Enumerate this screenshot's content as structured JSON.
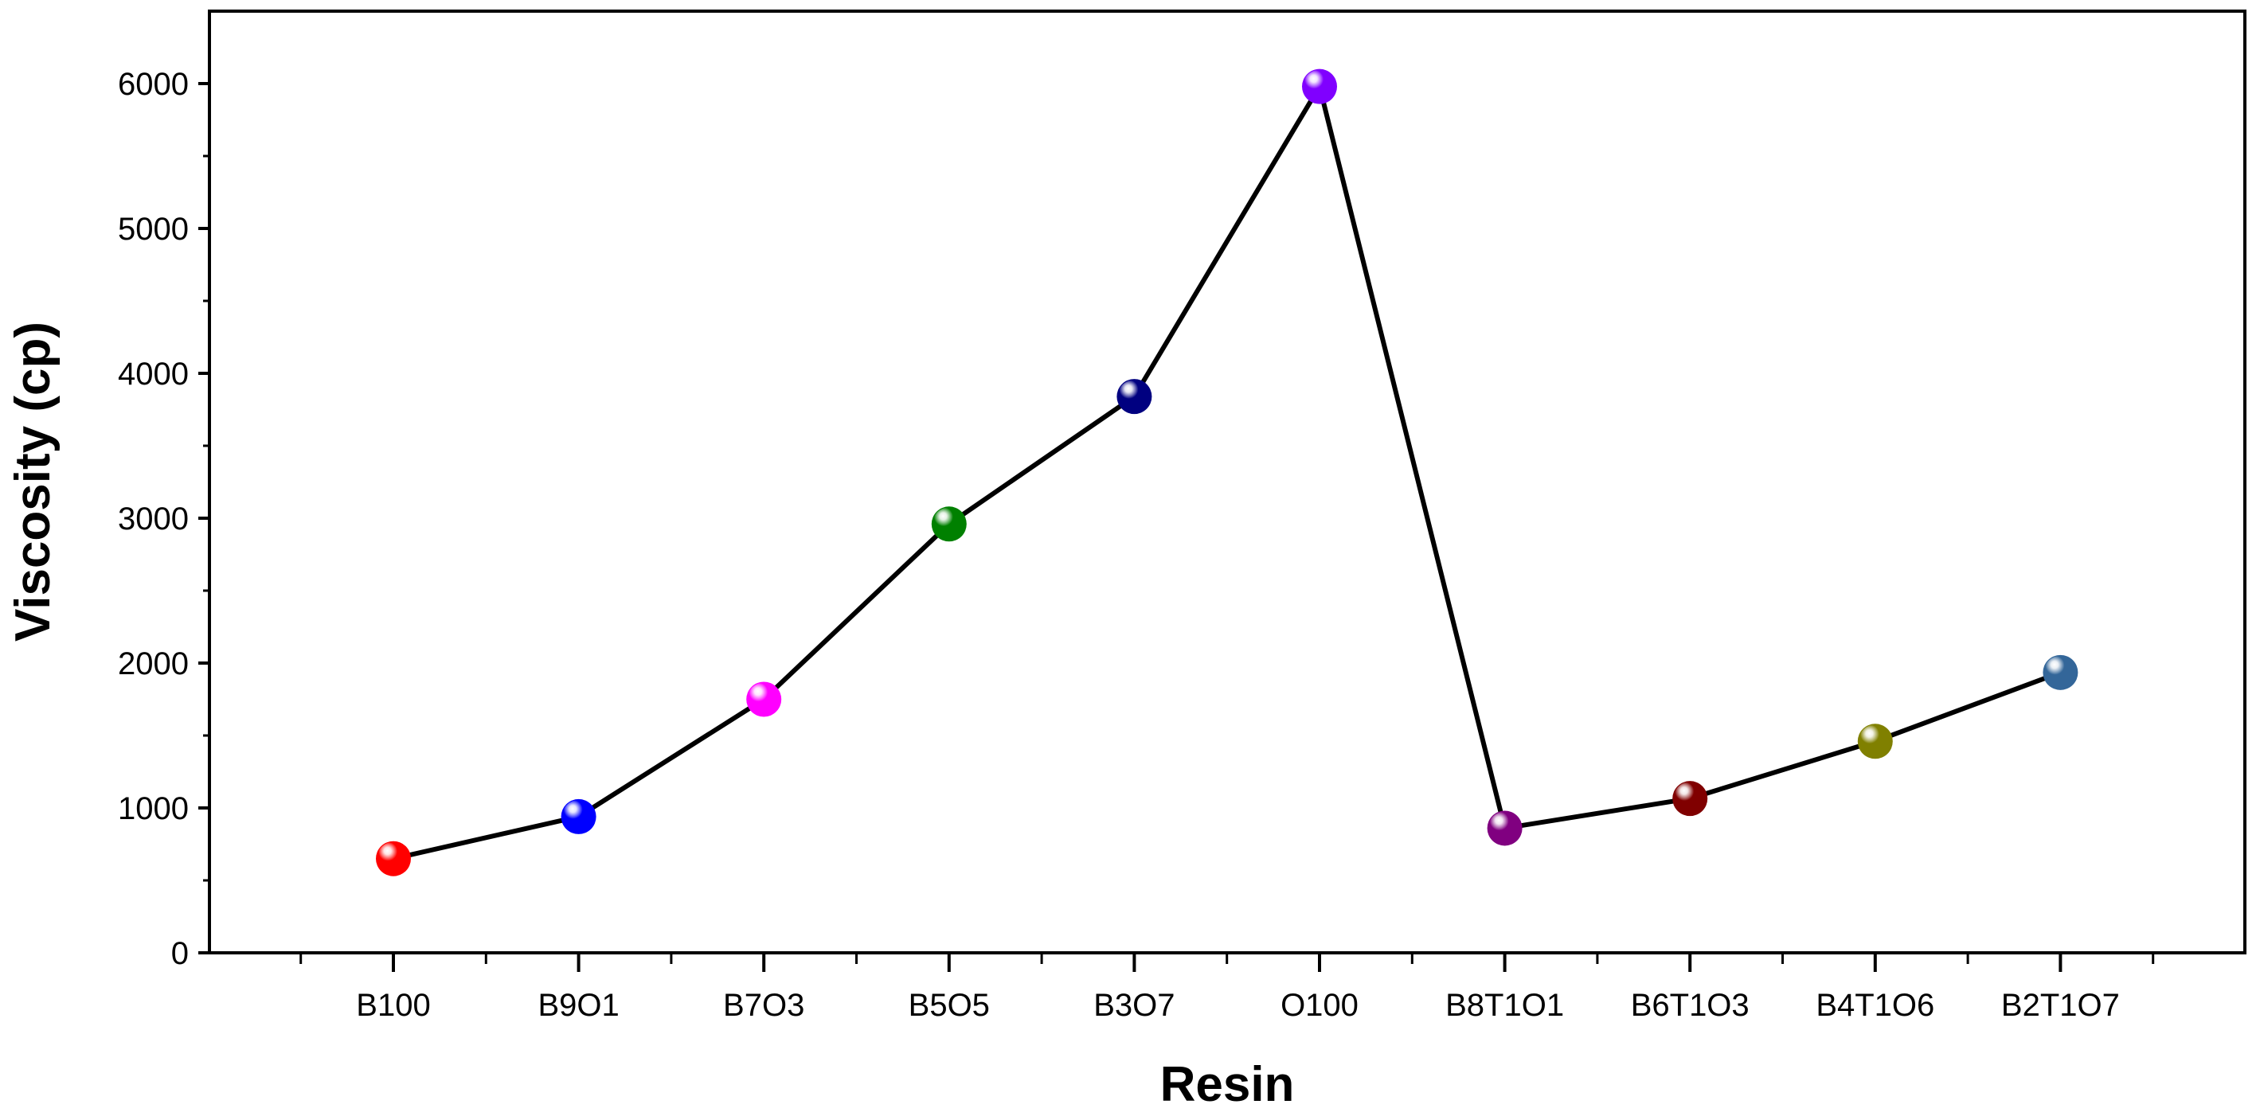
{
  "chart_data": {
    "type": "line",
    "title": "",
    "xlabel": "Resin",
    "ylabel": "Viscosity (cp)",
    "categories": [
      "B100",
      "B9O1",
      "B7O3",
      "B5O5",
      "B3O7",
      "O100",
      "B8T1O1",
      "B6T1O3",
      "B4T1O6",
      "B2T1O7"
    ],
    "values": [
      650,
      940,
      1750,
      2960,
      3840,
      5980,
      860,
      1065,
      1460,
      1935
    ],
    "marker_colors": [
      "#ff0000",
      "#0000ff",
      "#ff00ff",
      "#008000",
      "#000080",
      "#8000ff",
      "#800080",
      "#800000",
      "#808000",
      "#336699"
    ],
    "line_color": "#000000",
    "ylim": [
      0,
      6500
    ],
    "yticks": [
      0,
      1000,
      2000,
      3000,
      4000,
      5000,
      6000
    ],
    "grid": false,
    "legend": "none"
  }
}
